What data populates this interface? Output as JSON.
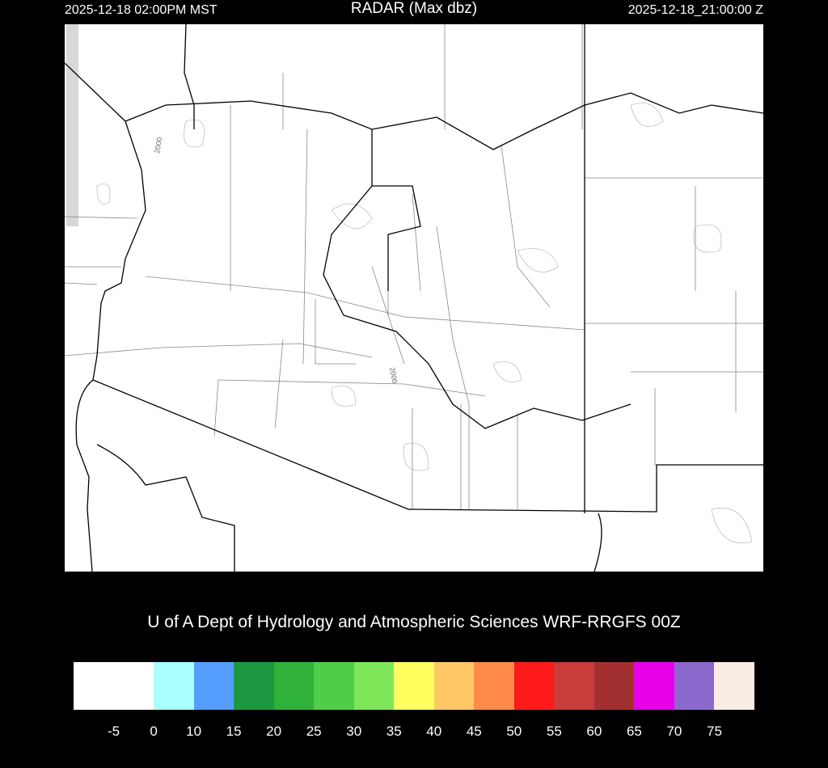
{
  "header": {
    "local_time": "2025-12-18 02:00PM MST",
    "title": "RADAR (Max dbz)",
    "utc_time": "2025-12-18_21:00:00 Z"
  },
  "map": {
    "contour_labels": [
      "2000",
      "2000"
    ]
  },
  "credit": "U of A Dept of Hydrology and Atmospheric Sciences WRF-RRGFS 00Z",
  "colorbar": {
    "colors": [
      "#ffffff",
      "#aaffff",
      "#559eff",
      "#1e9840",
      "#2fb13a",
      "#4fcd48",
      "#7fe65a",
      "#ffff60",
      "#ffc865",
      "#ff8a4a",
      "#ff1a1a",
      "#c83c3c",
      "#a33030",
      "#e800e8",
      "#8c68cc",
      "#f8ece4"
    ],
    "labels": [
      "-5",
      "0",
      "10",
      "15",
      "20",
      "25",
      "30",
      "35",
      "40",
      "45",
      "50",
      "55",
      "60",
      "65",
      "70",
      "75"
    ]
  }
}
